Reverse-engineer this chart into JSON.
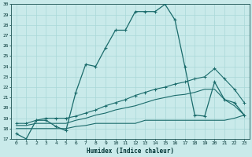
{
  "xlabel": "Humidex (Indice chaleur)",
  "background_color": "#c9eaea",
  "grid_color": "#a8d8d8",
  "line_color": "#1a6b6b",
  "xlim": [
    -0.5,
    23.5
  ],
  "ylim": [
    17,
    30
  ],
  "xticks": [
    0,
    1,
    2,
    3,
    4,
    5,
    6,
    7,
    8,
    9,
    10,
    11,
    12,
    13,
    14,
    15,
    16,
    17,
    18,
    19,
    20,
    21,
    22,
    23
  ],
  "yticks": [
    17,
    18,
    19,
    20,
    21,
    22,
    23,
    24,
    25,
    26,
    27,
    28,
    29,
    30
  ],
  "line1": {
    "x": [
      0,
      1,
      2,
      3,
      4,
      5,
      6,
      7,
      8,
      9,
      10,
      11,
      12,
      13,
      14,
      15,
      16,
      17,
      18,
      19,
      20,
      21,
      22,
      23
    ],
    "y": [
      17.5,
      17.0,
      18.8,
      18.8,
      18.2,
      17.8,
      21.5,
      24.2,
      24.0,
      25.8,
      27.5,
      27.5,
      29.3,
      29.3,
      29.3,
      30.0,
      28.5,
      24.0,
      19.3,
      19.2,
      22.5,
      20.8,
      20.5,
      19.3
    ]
  },
  "line2": {
    "x": [
      0,
      1,
      2,
      3,
      4,
      5,
      6,
      7,
      8,
      9,
      10,
      11,
      12,
      13,
      14,
      15,
      16,
      17,
      18,
      19,
      20,
      21,
      22,
      23
    ],
    "y": [
      18.5,
      18.5,
      18.8,
      19.0,
      19.0,
      19.0,
      19.2,
      19.5,
      19.8,
      20.2,
      20.5,
      20.8,
      21.2,
      21.5,
      21.8,
      22.0,
      22.3,
      22.5,
      22.8,
      23.0,
      23.8,
      22.8,
      21.8,
      20.5
    ]
  },
  "line3": {
    "x": [
      0,
      1,
      2,
      3,
      4,
      5,
      6,
      7,
      8,
      9,
      10,
      11,
      12,
      13,
      14,
      15,
      16,
      17,
      18,
      19,
      20,
      21,
      22,
      23
    ],
    "y": [
      18.3,
      18.3,
      18.5,
      18.5,
      18.5,
      18.5,
      18.8,
      19.0,
      19.3,
      19.5,
      19.8,
      20.0,
      20.2,
      20.5,
      20.8,
      21.0,
      21.2,
      21.3,
      21.5,
      21.8,
      21.8,
      20.8,
      20.2,
      19.3
    ]
  },
  "line4": {
    "x": [
      0,
      1,
      2,
      3,
      4,
      5,
      6,
      7,
      8,
      9,
      10,
      11,
      12,
      13,
      14,
      15,
      16,
      17,
      18,
      19,
      20,
      21,
      22,
      23
    ],
    "y": [
      18.0,
      18.0,
      18.0,
      18.0,
      18.0,
      18.0,
      18.2,
      18.3,
      18.5,
      18.5,
      18.5,
      18.5,
      18.5,
      18.8,
      18.8,
      18.8,
      18.8,
      18.8,
      18.8,
      18.8,
      18.8,
      18.8,
      19.0,
      19.3
    ]
  }
}
